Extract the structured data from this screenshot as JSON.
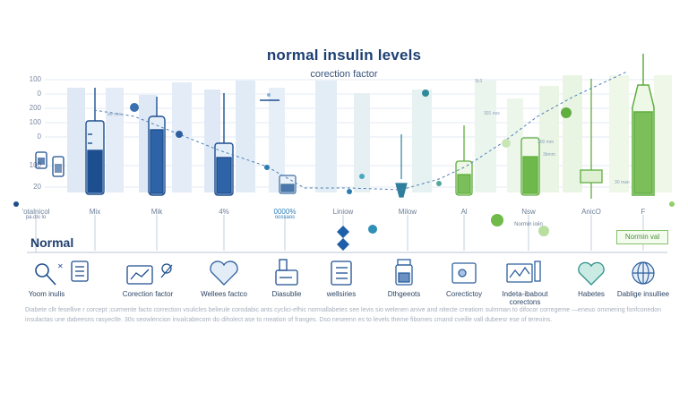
{
  "title": "normal insulin levels",
  "subtitle": "corection factor",
  "y_axis": [
    "100",
    "0",
    "200",
    "100",
    "0",
    "100",
    "20"
  ],
  "columns": [
    "'otalnicol",
    "Mix",
    "Mik",
    "4%",
    "0000%",
    "Liniow",
    "Milow",
    "Al",
    "Nsw",
    "AnicO",
    "F"
  ],
  "column_sublabels": {
    "otal": "pa.dis lo",
    "pct": "oossaos",
    "nsw": "Normin ioiin"
  },
  "normal_label": "Normal",
  "normal_badge": "Normin val",
  "icons": [
    {
      "label": "Yoom inulis",
      "icon": "magnifier-icon"
    },
    {
      "label": "Corection factor",
      "icon": "calculator-icon"
    },
    {
      "label": "Wellees factco",
      "icon": "heart-icon"
    },
    {
      "label": "Diasublie",
      "icon": "glucose-meter-icon"
    },
    {
      "label": "wellsiries",
      "icon": "checklist-icon"
    },
    {
      "label": "Dthgeeots",
      "icon": "vial-icon"
    },
    {
      "label": "Corectictoy",
      "icon": "chart-card-icon"
    },
    {
      "label": "Indeta-ibabout corectons",
      "icon": "monitor-icon"
    },
    {
      "label": "Habetes",
      "icon": "heart-icon"
    },
    {
      "label": "Dablige insulliee",
      "icon": "globe-icon"
    }
  ],
  "footer": "Diabete cllr fesellive r corcept ;curmente facto correction vsulicles belieule corodabic ants cyclici-efhic normallabetes see levis sio welenen anive and nitecte creatiom sulmman to difocor corregeme —eneuo ommering fonfconedon insulactas une dabeesns rasyectle. 30s seowlencion invalcabecom do diholect ase to rneation of franges. Dso neseenn es to levels theme fibomes cmand cveille vall dubeesr ese of tereoins.",
  "small_notes": [
    "3t,0",
    "a0 oos",
    "301 oos",
    "300 mm",
    "3bmm",
    "30 man",
    "0 0",
    "ae"
  ],
  "colors": {
    "blue": "#1d4e8f",
    "blue_light": "#a9c4e6",
    "teal": "#2fa9a3",
    "green": "#5fae3f",
    "green_light": "#c9e5b5"
  }
}
